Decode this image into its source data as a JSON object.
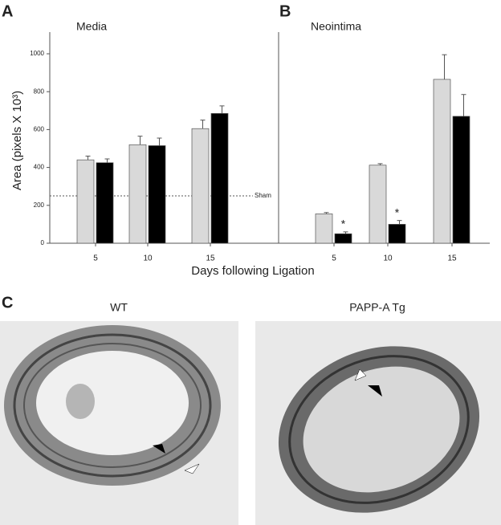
{
  "figure": {
    "panel_labels": [
      "A",
      "B",
      "C"
    ],
    "x_label": "Days following Ligation",
    "y_label": "Area (pixels X 10³)"
  },
  "chart_data": [
    {
      "type": "bar",
      "title": "Media",
      "categories": [
        "5",
        "10",
        "15"
      ],
      "series": [
        {
          "color": "#d9d9d9",
          "values": [
            440,
            520,
            605
          ],
          "errors": [
            20,
            45,
            45
          ]
        },
        {
          "color": "#000000",
          "values": [
            425,
            515,
            685
          ],
          "errors": [
            20,
            40,
            40
          ]
        }
      ],
      "ylim": [
        0,
        1100
      ],
      "yticks": [
        0,
        200,
        400,
        600,
        800,
        1000
      ],
      "reference_line": {
        "value": 250,
        "label": "Sham"
      }
    },
    {
      "type": "bar",
      "title": "Neointima",
      "categories": [
        "5",
        "10",
        "15"
      ],
      "series": [
        {
          "color": "#d9d9d9",
          "values": [
            155,
            412,
            865
          ],
          "errors": [
            7,
            8,
            130
          ]
        },
        {
          "color": "#000000",
          "values": [
            50,
            100,
            670
          ],
          "errors": [
            10,
            20,
            115
          ],
          "significant": [
            true,
            true,
            false
          ],
          "significance_mark": "*"
        }
      ],
      "ylim": [
        0,
        1100
      ]
    }
  ],
  "images": [
    {
      "label": "WT"
    },
    {
      "label": "PAPP-A Tg"
    }
  ]
}
